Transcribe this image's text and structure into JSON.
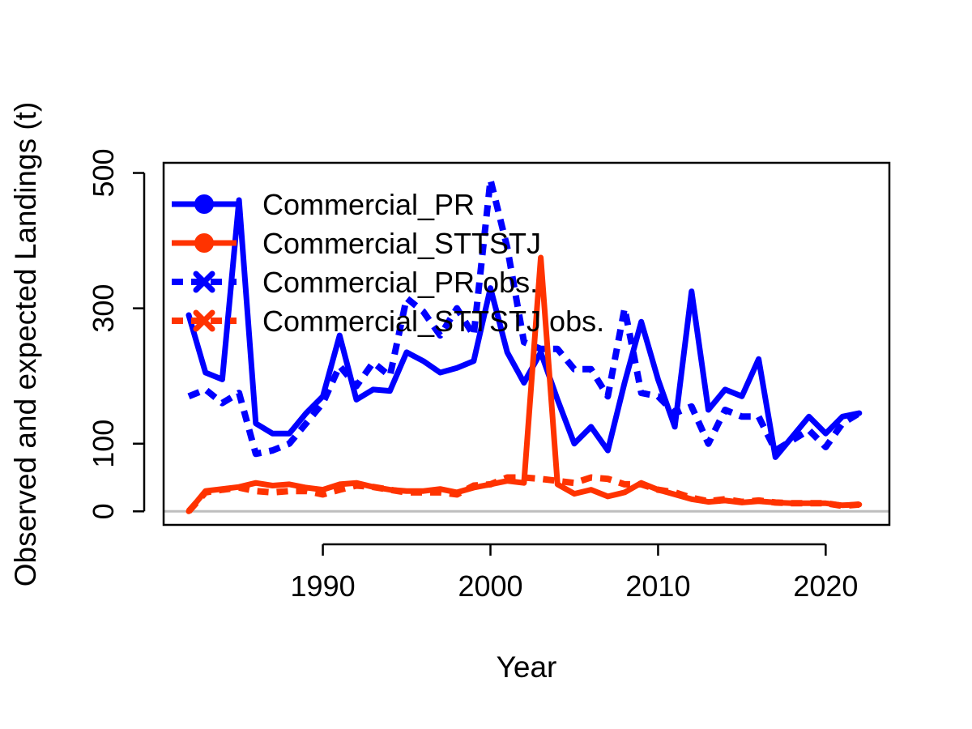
{
  "chart_data": {
    "type": "line",
    "xlabel": "Year",
    "ylabel": "Observed and expected Landings (t)",
    "xlim": [
      1980.5,
      2023.8
    ],
    "ylim": [
      -20,
      515
    ],
    "x_ticks": [
      1990,
      2000,
      2010,
      2020
    ],
    "y_ticks": [
      0,
      100,
      300,
      500
    ],
    "reference_line": {
      "y": 0,
      "color": "#bebebe"
    },
    "legend": {
      "position": "top-left",
      "entries": [
        {
          "name": "Commercial_PR",
          "color": "#0000ff",
          "style": "solid",
          "marker": "circle"
        },
        {
          "name": "Commercial_STTSTJ",
          "color": "#ff3300",
          "style": "solid",
          "marker": "circle"
        },
        {
          "name": "Commercial_PR obs.",
          "color": "#0000ff",
          "style": "dashed",
          "marker": "x"
        },
        {
          "name": "Commercial_STTSTJ obs.",
          "color": "#ff3300",
          "style": "dashed",
          "marker": "x"
        }
      ]
    },
    "x": [
      1982,
      1983,
      1984,
      1985,
      1986,
      1987,
      1988,
      1989,
      1990,
      1991,
      1992,
      1993,
      1994,
      1995,
      1996,
      1997,
      1998,
      1999,
      2000,
      2001,
      2002,
      2003,
      2004,
      2005,
      2006,
      2007,
      2008,
      2009,
      2010,
      2011,
      2012,
      2013,
      2014,
      2015,
      2016,
      2017,
      2018,
      2019,
      2020,
      2021,
      2022
    ],
    "series": [
      {
        "name": "Commercial_PR obs.",
        "color": "#0000ff",
        "style": "dashed",
        "values": [
          170,
          180,
          160,
          175,
          85,
          90,
          100,
          130,
          160,
          215,
          185,
          220,
          200,
          315,
          295,
          260,
          300,
          260,
          490,
          390,
          250,
          240,
          240,
          210,
          210,
          170,
          300,
          175,
          170,
          145,
          155,
          100,
          150,
          140,
          140,
          90,
          105,
          120,
          95,
          130,
          145
        ]
      },
      {
        "name": "Commercial_STTSTJ obs.",
        "color": "#ff3300",
        "style": "dashed",
        "values": [
          0,
          28,
          32,
          35,
          30,
          28,
          30,
          30,
          25,
          32,
          38,
          36,
          32,
          28,
          28,
          28,
          25,
          38,
          40,
          50,
          50,
          48,
          45,
          42,
          50,
          48,
          40,
          40,
          32,
          28,
          20,
          15,
          18,
          14,
          16,
          13,
          12,
          12,
          12,
          8,
          10
        ]
      },
      {
        "name": "Commercial_PR",
        "color": "#0000ff",
        "style": "solid",
        "values": [
          290,
          205,
          195,
          460,
          130,
          115,
          115,
          145,
          170,
          260,
          165,
          180,
          178,
          235,
          222,
          205,
          212,
          222,
          330,
          235,
          190,
          235,
          165,
          100,
          125,
          90,
          190,
          280,
          195,
          125,
          325,
          150,
          180,
          170,
          225,
          80,
          110,
          140,
          115,
          140,
          145
        ]
      },
      {
        "name": "Commercial_STTSTJ",
        "color": "#ff3300",
        "style": "solid",
        "values": [
          0,
          30,
          33,
          36,
          42,
          38,
          40,
          35,
          32,
          40,
          42,
          36,
          32,
          30,
          30,
          33,
          28,
          35,
          40,
          45,
          42,
          375,
          40,
          26,
          32,
          22,
          28,
          42,
          32,
          25,
          18,
          14,
          16,
          13,
          15,
          13,
          12,
          12,
          12,
          9,
          10
        ]
      }
    ]
  }
}
